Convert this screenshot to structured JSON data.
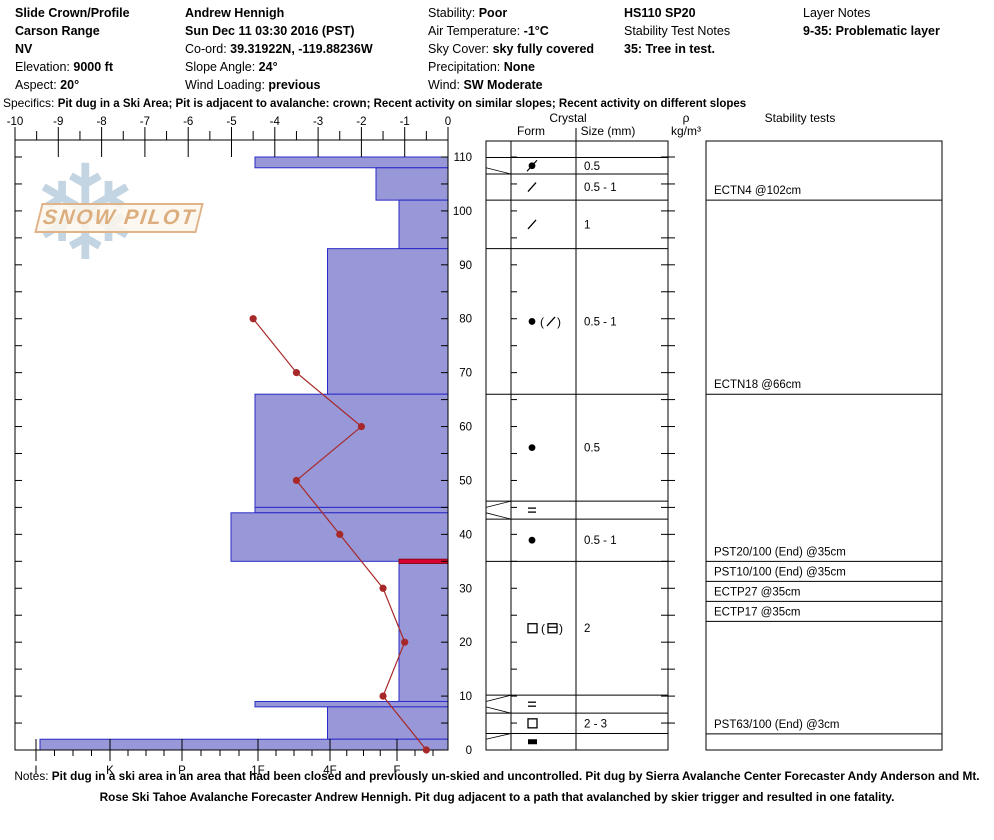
{
  "header": {
    "columns": [
      {
        "items": [
          {
            "label": "",
            "value": "Slide Crown/Profile"
          },
          {
            "label": "",
            "value": "Carson Range"
          },
          {
            "label": "",
            "value": "NV"
          },
          {
            "label": "Elevation: ",
            "value": "9000 ft"
          },
          {
            "label": "Aspect: ",
            "value": "20°"
          }
        ]
      },
      {
        "items": [
          {
            "label": "",
            "value": "Andrew Hennigh"
          },
          {
            "label": "",
            "value": "Sun Dec 11 03:30 2016 (PST)"
          },
          {
            "label": "Co-ord: ",
            "value": "39.31922N, -119.88236W"
          },
          {
            "label": "Slope Angle: ",
            "value": "24°"
          },
          {
            "label": "Wind Loading: ",
            "value": "previous"
          }
        ]
      },
      {
        "items": [
          {
            "label": "Stability: ",
            "value": "Poor"
          },
          {
            "label": "Air Temperature: ",
            "value": "-1°C"
          },
          {
            "label": "Sky Cover: ",
            "value": "sky fully covered"
          },
          {
            "label": "Precipitation: ",
            "value": "None"
          },
          {
            "label": "Wind:  ",
            "value": "SW Moderate"
          }
        ]
      },
      {
        "items": [
          {
            "label": "",
            "value": "HS110 SP20"
          },
          {
            "label": "Stability Test Notes",
            "value": ""
          },
          {
            "label": "",
            "value": "35: Tree in test."
          }
        ]
      },
      {
        "items": [
          {
            "label": "Layer Notes",
            "value": ""
          },
          {
            "label": "",
            "value": "9-35: Problematic layer"
          }
        ]
      }
    ]
  },
  "specifics": {
    "label": "Specifics: ",
    "text": "Pit dug in a Ski Area; Pit is adjacent to avalanche: crown; Recent activity on similar slopes; Recent activity on different slopes"
  },
  "logo": {
    "text": "SNOW PILOT"
  },
  "notes": {
    "label": "Notes: ",
    "text": "Pit dug in a ski area in an area that had been closed and previously un-skied and uncontrolled. Pit dug by Sierra Avalanche Center Forecaster Andy Anderson and Mt. Rose Ski Tahoe Avalanche Forecaster Andrew Hennigh. Pit dug adjacent to a path that avalanched by skier trigger and resulted in one fatality."
  },
  "chart_data": {
    "type": "bar",
    "description": "Snow pit profile: horizontal hardness bars by depth with snow temperature line overlay, crystal form/size table and stability test results",
    "depth_axis": {
      "unit": "cm",
      "min": 0,
      "max": 110,
      "ticks": [
        0,
        10,
        20,
        30,
        40,
        50,
        60,
        70,
        80,
        90,
        100,
        110
      ],
      "minor_step": 5
    },
    "temperature_axis": {
      "unit": "°C",
      "min": -10,
      "max": 0,
      "tick_labels": [
        "-10",
        "-9",
        "-8",
        "-7",
        "-6",
        "-5",
        "-4",
        "-3",
        "-2",
        "-1",
        "0"
      ],
      "minor_step": 0.5
    },
    "hardness_axis": {
      "tick_labels": [
        "I",
        "K",
        "P",
        "1F",
        "4F",
        "F"
      ]
    },
    "layers": [
      {
        "top_cm": 110,
        "bottom_cm": 108,
        "hardness": "1F",
        "form": "dot-slash",
        "size_mm": "0.5"
      },
      {
        "top_cm": 108,
        "bottom_cm": 102,
        "hardness": "F+",
        "form": "slash",
        "size_mm": "0.5 - 1"
      },
      {
        "top_cm": 102,
        "bottom_cm": 93,
        "hardness": "F",
        "form": "slash",
        "size_mm": "1"
      },
      {
        "top_cm": 93,
        "bottom_cm": 66,
        "hardness": "4F",
        "form": "dot (slash)",
        "size_mm": "0.5 - 1"
      },
      {
        "top_cm": 66,
        "bottom_cm": 45,
        "hardness": "1F",
        "form": "dot",
        "size_mm": "0.5"
      },
      {
        "top_cm": 45,
        "bottom_cm": 44,
        "hardness": "1F",
        "form": "eq",
        "size_mm": ""
      },
      {
        "top_cm": 44,
        "bottom_cm": 35,
        "hardness": "1F+",
        "form": "dot",
        "size_mm": "0.5 - 1"
      },
      {
        "top_cm": 35,
        "bottom_cm": 9,
        "hardness": "F",
        "form": "square (square-bar)",
        "size_mm": "2"
      },
      {
        "top_cm": 9,
        "bottom_cm": 8,
        "hardness": "1F",
        "form": "eq",
        "size_mm": ""
      },
      {
        "top_cm": 8,
        "bottom_cm": 2,
        "hardness": "4F",
        "form": "square",
        "size_mm": "2 - 3"
      },
      {
        "top_cm": 2,
        "bottom_cm": 0,
        "hardness": "I",
        "form": "ice",
        "size_mm": ""
      }
    ],
    "failure_layer_depth_cm": 35,
    "temperature_profile": [
      {
        "depth_cm": 80,
        "temp_c": -4.5
      },
      {
        "depth_cm": 70,
        "temp_c": -3.5
      },
      {
        "depth_cm": 60,
        "temp_c": -2
      },
      {
        "depth_cm": 50,
        "temp_c": -3.5
      },
      {
        "depth_cm": 40,
        "temp_c": -2.5
      },
      {
        "depth_cm": 30,
        "temp_c": -1.5
      },
      {
        "depth_cm": 20,
        "temp_c": -1
      },
      {
        "depth_cm": 10,
        "temp_c": -1.5
      },
      {
        "depth_cm": 0,
        "temp_c": -0.5
      }
    ],
    "stability_tests": [
      {
        "label": "ECTN4 @102cm",
        "depth_cm": 102
      },
      {
        "label": "ECTN18 @66cm",
        "depth_cm": 66
      },
      {
        "label": "PST20/100 (End) @35cm",
        "depth_cm": 35
      },
      {
        "label": "PST10/100 (End) @35cm",
        "depth_cm": 35
      },
      {
        "label": "ECTP27 @35cm",
        "depth_cm": 35
      },
      {
        "label": "ECTP17 @35cm",
        "depth_cm": 35
      },
      {
        "label": "PST63/100 (End) @3cm",
        "depth_cm": 3
      }
    ],
    "table_headers": {
      "crystal": "Crystal",
      "form": "Form",
      "size": "Size (mm)",
      "density_symbol": "ρ",
      "density_unit": "kg/m³",
      "stability": "Stability tests"
    },
    "colors": {
      "bar_fill": "#9898d8",
      "bar_border": "#2a2ac8",
      "temperature": "#a62828",
      "failure_layer": "#d80330"
    }
  }
}
